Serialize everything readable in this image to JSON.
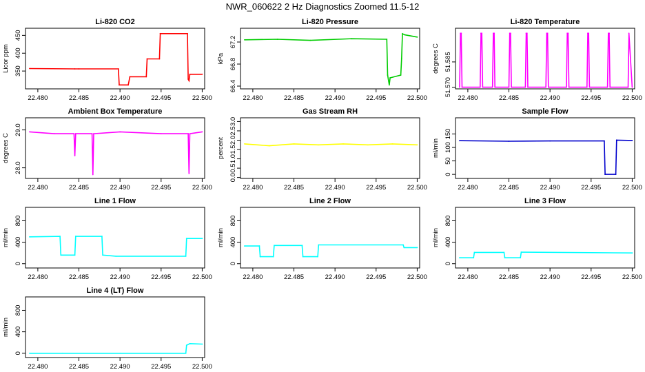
{
  "page_title": "NWR_060622  2 Hz Diagnostics Zoomed 11.5-12",
  "x_ticks": [
    "22.480",
    "22.485",
    "22.490",
    "22.495",
    "22.500"
  ],
  "chart_data": [
    {
      "type": "line",
      "title": "Li-820 CO2",
      "ylabel": "Licor ppm",
      "color": "#ff0000",
      "grid": false,
      "xlim": [
        22.4785,
        22.5003
      ],
      "ylim": [
        300,
        470
      ],
      "yticks": [
        350,
        400,
        450
      ],
      "ytick_labels": [
        "350",
        "400",
        "450"
      ],
      "series": [
        {
          "x": [
            22.479,
            22.4845,
            22.485,
            22.4898,
            22.4899,
            22.491,
            22.4912,
            22.4932,
            22.4933,
            22.4948,
            22.4949,
            22.4982,
            22.4983,
            22.4984,
            22.4985,
            22.5
          ],
          "y": [
            357,
            356,
            356,
            356,
            311,
            311,
            334,
            334,
            384,
            384,
            455,
            455,
            327,
            323,
            341,
            341
          ]
        }
      ]
    },
    {
      "type": "line",
      "title": "Li-820 Pressure",
      "ylabel": "kPa",
      "color": "#00cc00",
      "grid": false,
      "xlim": [
        22.4785,
        22.5003
      ],
      "ylim": [
        66.35,
        67.45
      ],
      "yticks": [
        66.4,
        66.8,
        67.2
      ],
      "ytick_labels": [
        "66.4",
        "66.8",
        "67.2"
      ],
      "series": [
        {
          "x": [
            22.479,
            22.483,
            22.487,
            22.492,
            22.4963,
            22.4964,
            22.4966,
            22.4967,
            22.498,
            22.4981,
            22.4982,
            22.4985,
            22.5
          ],
          "y": [
            67.24,
            67.25,
            67.23,
            67.26,
            67.25,
            66.6,
            66.42,
            66.55,
            66.6,
            66.9,
            67.35,
            67.33,
            67.29
          ]
        }
      ]
    },
    {
      "type": "line",
      "title": "Li-820 Temperature",
      "ylabel": "degrees C",
      "color": "#ff00ff",
      "grid": false,
      "xlim": [
        22.4785,
        22.5003
      ],
      "ylim": [
        51.569,
        51.605
      ],
      "yticks": [
        51.57,
        51.585
      ],
      "ytick_labels": [
        "51.570",
        "51.585"
      ],
      "series": [
        {
          "x": [
            22.479,
            22.4791,
            22.4792,
            22.4793,
            22.4815,
            22.4816,
            22.4817,
            22.4818,
            22.483,
            22.4831,
            22.4832,
            22.4833,
            22.485,
            22.4851,
            22.4852,
            22.4853,
            22.487,
            22.4871,
            22.4872,
            22.4873,
            22.4895,
            22.4896,
            22.4897,
            22.4898,
            22.492,
            22.4921,
            22.4922,
            22.4923,
            22.4945,
            22.4946,
            22.4947,
            22.4948,
            22.497,
            22.4971,
            22.4972,
            22.4973,
            22.4995,
            22.4996,
            22.5
          ],
          "y": [
            51.57,
            51.602,
            51.602,
            51.57,
            51.57,
            51.602,
            51.602,
            51.57,
            51.57,
            51.602,
            51.602,
            51.57,
            51.57,
            51.602,
            51.602,
            51.57,
            51.57,
            51.602,
            51.602,
            51.57,
            51.57,
            51.602,
            51.602,
            51.57,
            51.57,
            51.602,
            51.602,
            51.57,
            51.57,
            51.602,
            51.602,
            51.57,
            51.57,
            51.602,
            51.602,
            51.57,
            51.57,
            51.602,
            51.57
          ]
        }
      ]
    },
    {
      "type": "line",
      "title": "Ambient Box Temperature",
      "ylabel": "degrees C",
      "color": "#ff00ff",
      "grid": false,
      "xlim": [
        22.4785,
        22.5003
      ],
      "ylim": [
        27.72,
        29.32
      ],
      "yticks": [
        28.0,
        29.0
      ],
      "ytick_labels": [
        "28.0",
        "29.0"
      ],
      "series": [
        {
          "x": [
            22.479,
            22.482,
            22.4844,
            22.4845,
            22.4846,
            22.4866,
            22.4867,
            22.4868,
            22.49,
            22.495,
            22.4983,
            22.4984,
            22.4985,
            22.5
          ],
          "y": [
            28.95,
            28.9,
            28.9,
            28.32,
            28.9,
            28.9,
            27.82,
            28.9,
            28.95,
            28.9,
            28.9,
            27.85,
            28.9,
            28.95
          ]
        }
      ]
    },
    {
      "type": "line",
      "title": "Gas Stream RH",
      "ylabel": "percent",
      "color": "#ffff00",
      "grid": false,
      "xlim": [
        22.4785,
        22.5003
      ],
      "ylim": [
        -0.05,
        3.2
      ],
      "yticks": [
        0.0,
        0.5,
        1.0,
        1.5,
        2.0,
        2.5,
        3.0
      ],
      "ytick_labels": [
        "0.0",
        "0.5",
        "1.0",
        "1.5",
        "2.0",
        "2.5",
        "3.0"
      ],
      "series": [
        {
          "x": [
            22.479,
            22.482,
            22.485,
            22.488,
            22.491,
            22.494,
            22.497,
            22.5
          ],
          "y": [
            1.8,
            1.7,
            1.8,
            1.75,
            1.8,
            1.75,
            1.8,
            1.75
          ]
        }
      ]
    },
    {
      "type": "line",
      "title": "Sample Flow",
      "ylabel": "ml/min",
      "color": "#0000cc",
      "grid": false,
      "xlim": [
        22.4785,
        22.5003
      ],
      "ylim": [
        -15,
        210
      ],
      "yticks": [
        0,
        50,
        100,
        150
      ],
      "ytick_labels": [
        "0",
        "50",
        "100",
        "150"
      ],
      "series": [
        {
          "x": [
            22.479,
            22.485,
            22.49,
            22.4966,
            22.4967,
            22.498,
            22.4981,
            22.5
          ],
          "y": [
            125,
            123,
            124,
            124,
            0,
            0,
            127,
            126
          ]
        }
      ]
    },
    {
      "type": "line",
      "title": "Line 1 Flow",
      "ylabel": "ml/min",
      "color": "#00ffff",
      "grid": false,
      "xlim": [
        22.4785,
        22.5003
      ],
      "ylim": [
        -80,
        1050
      ],
      "yticks": [
        0,
        400,
        800
      ],
      "ytick_labels": [
        "0",
        "400",
        "800"
      ],
      "series": [
        {
          "x": [
            22.479,
            22.4827,
            22.4828,
            22.4845,
            22.4846,
            22.4878,
            22.4879,
            22.4895,
            22.498,
            22.4981,
            22.5
          ],
          "y": [
            500,
            510,
            160,
            160,
            510,
            510,
            160,
            140,
            140,
            470,
            470
          ]
        }
      ]
    },
    {
      "type": "line",
      "title": "Line 2 Flow",
      "ylabel": "ml/min",
      "color": "#00ffff",
      "grid": false,
      "xlim": [
        22.4785,
        22.5003
      ],
      "ylim": [
        -80,
        1050
      ],
      "yticks": [
        0,
        400,
        800
      ],
      "ytick_labels": [
        "0",
        "400",
        "800"
      ],
      "series": [
        {
          "x": [
            22.479,
            22.4808,
            22.4809,
            22.4825,
            22.4826,
            22.486,
            22.4861,
            22.4879,
            22.488,
            22.4983,
            22.4984,
            22.5
          ],
          "y": [
            330,
            330,
            130,
            130,
            340,
            340,
            130,
            130,
            350,
            350,
            300,
            300
          ]
        }
      ]
    },
    {
      "type": "line",
      "title": "Line 3 Flow",
      "ylabel": "ml/min",
      "color": "#00ffff",
      "grid": false,
      "xlim": [
        22.4785,
        22.5003
      ],
      "ylim": [
        -80,
        1050
      ],
      "yticks": [
        0,
        400,
        800
      ],
      "ytick_labels": [
        "0",
        "400",
        "800"
      ],
      "series": [
        {
          "x": [
            22.479,
            22.4807,
            22.4808,
            22.4844,
            22.4845,
            22.4864,
            22.4865,
            22.5
          ],
          "y": [
            110,
            110,
            210,
            210,
            110,
            110,
            215,
            200
          ]
        }
      ]
    },
    {
      "type": "line",
      "title": "Line 4 (LT) Flow",
      "ylabel": "ml/min",
      "color": "#00ffff",
      "grid": false,
      "xlim": [
        22.4785,
        22.5003
      ],
      "ylim": [
        -80,
        1050
      ],
      "yticks": [
        0,
        400,
        800
      ],
      "ytick_labels": [
        "0",
        "400",
        "800"
      ],
      "series": [
        {
          "x": [
            22.479,
            22.483,
            22.49,
            22.498,
            22.4981,
            22.4985,
            22.5
          ],
          "y": [
            0,
            0,
            0,
            0,
            150,
            180,
            170
          ]
        }
      ]
    }
  ]
}
